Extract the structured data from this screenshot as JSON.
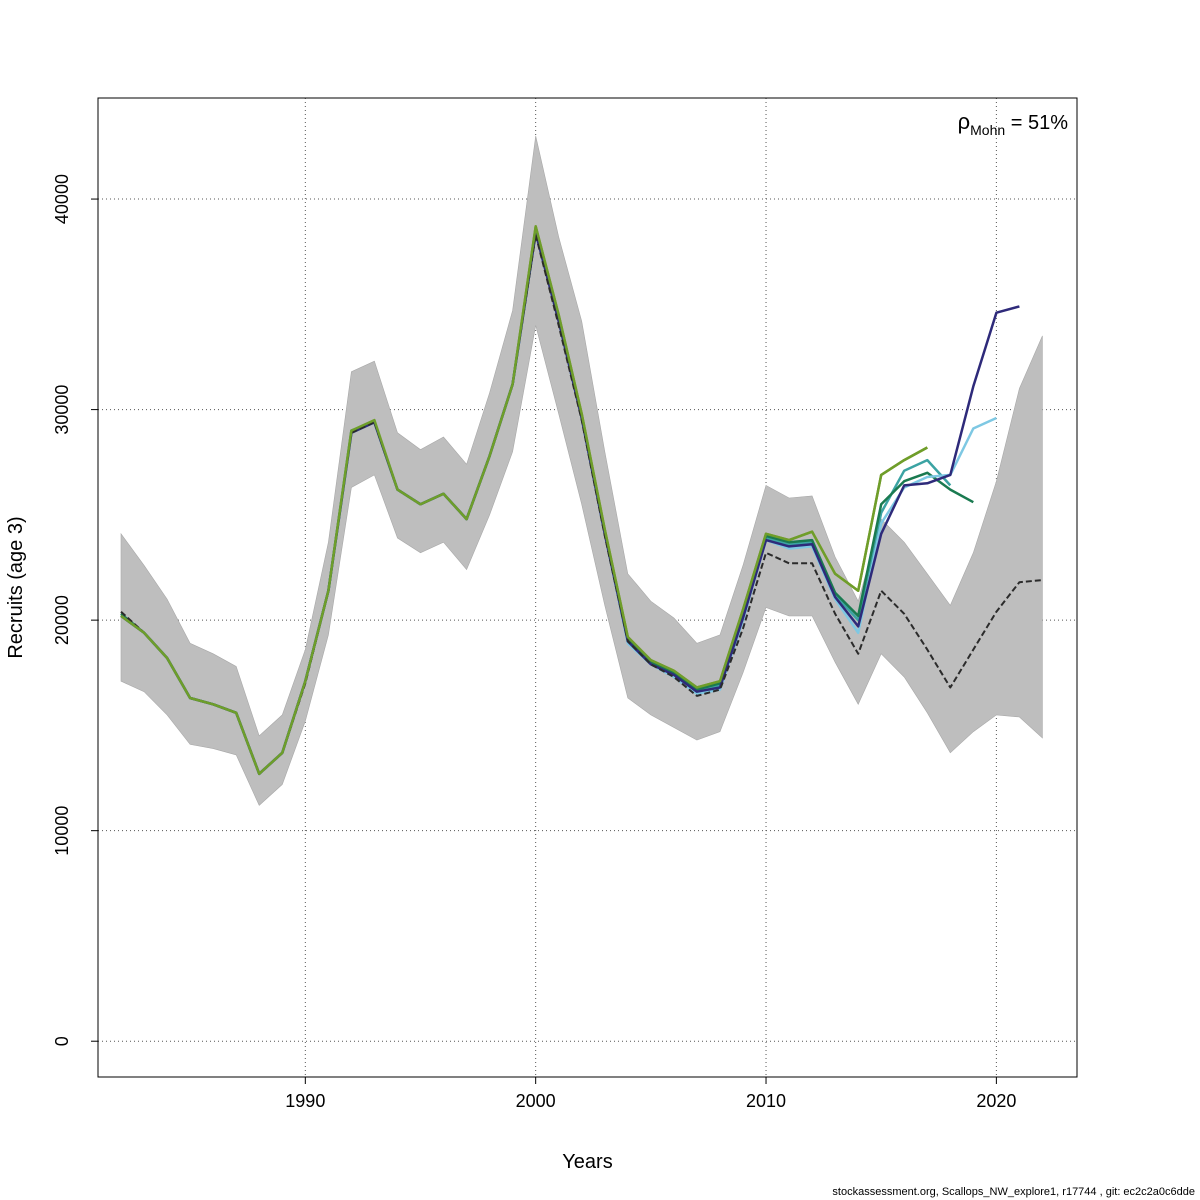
{
  "footer": "stockassessment.org, Scallops_NW_explore1, r17744 , git: ec2c2a0c6dde",
  "annotation": {
    "rho_symbol": "ρ",
    "rho_subscript": "Mohn",
    "rho_value": " = 51%"
  },
  "chart_data": {
    "type": "line",
    "title": "",
    "xlabel": "Years",
    "ylabel": "Recruits (age 3)",
    "xlim": [
      1981,
      2023.5
    ],
    "ylim": [
      -1700,
      44800
    ],
    "xticks": [
      1990,
      2000,
      2010,
      2020
    ],
    "yticks": [
      0,
      10000,
      20000,
      30000,
      40000
    ],
    "grid": true,
    "confidence_band": {
      "x": [
        1982,
        1983,
        1984,
        1985,
        1986,
        1987,
        1988,
        1989,
        1990,
        1991,
        1992,
        1993,
        1994,
        1995,
        1996,
        1997,
        1998,
        1999,
        2000,
        2001,
        2002,
        2003,
        2004,
        2005,
        2006,
        2007,
        2008,
        2009,
        2010,
        2011,
        2012,
        2013,
        2014,
        2015,
        2016,
        2017,
        2018,
        2019,
        2020,
        2021,
        2022
      ],
      "upper": [
        24100,
        22600,
        21000,
        18900,
        18400,
        17800,
        14500,
        15500,
        18600,
        23700,
        31800,
        32300,
        28900,
        28100,
        28700,
        27400,
        30800,
        34700,
        43000,
        38200,
        34200,
        28000,
        22200,
        20900,
        20100,
        18900,
        19300,
        22600,
        26400,
        25800,
        25900,
        23000,
        20900,
        24800,
        23700,
        22200,
        20700,
        23200,
        26600,
        31000,
        33500
      ],
      "lower": [
        17100,
        16600,
        15500,
        14100,
        13900,
        13600,
        11200,
        12200,
        15200,
        19300,
        26300,
        26900,
        23900,
        23200,
        23700,
        22400,
        25000,
        28000,
        34000,
        29800,
        25500,
        20700,
        16300,
        15500,
        14900,
        14300,
        14700,
        17500,
        20600,
        20200,
        20200,
        18000,
        16000,
        18400,
        17300,
        15600,
        13700,
        14700,
        15500,
        15400,
        14400
      ]
    },
    "series": [
      {
        "color": "#8f8f2a",
        "x": [
          1982,
          1983,
          1984,
          1985,
          1986,
          1987,
          1988,
          1989,
          1990,
          1991,
          1992,
          1993,
          1994,
          1995,
          1996,
          1997,
          1998,
          1999,
          2000,
          2001,
          2002,
          2003,
          2004,
          2005,
          2006,
          2007,
          2008,
          2009,
          2010,
          2011,
          2012,
          2013,
          2014,
          2015,
          2016,
          2017
        ],
        "y": [
          20200,
          19400,
          18200,
          16300,
          16000,
          15600,
          12700,
          13700,
          17100,
          21400,
          29000,
          29400,
          26200,
          25500,
          26000,
          24800,
          27800,
          31200,
          38700,
          34500,
          29800,
          24300,
          19200,
          18100,
          17600,
          16800,
          17100,
          20500,
          24100,
          23800,
          24200,
          22200,
          21400,
          26900,
          27600,
          28200
        ]
      },
      {
        "color": "#3ba3a3",
        "x": [
          1982,
          1983,
          1984,
          1985,
          1986,
          1987,
          1988,
          1989,
          1990,
          1991,
          1992,
          1993,
          1994,
          1995,
          1996,
          1997,
          1998,
          1999,
          2000,
          2001,
          2002,
          2003,
          2004,
          2005,
          2006,
          2007,
          2008,
          2009,
          2010,
          2011,
          2012,
          2013,
          2014,
          2015,
          2016,
          2017,
          2018
        ],
        "y": [
          20200,
          19400,
          18200,
          16300,
          16000,
          15600,
          12700,
          13700,
          17100,
          21400,
          29000,
          29400,
          26200,
          25500,
          26000,
          24800,
          27800,
          31200,
          38500,
          34300,
          29600,
          24100,
          19000,
          18000,
          17400,
          16600,
          16900,
          20200,
          23900,
          23600,
          23700,
          21200,
          20000,
          25100,
          27100,
          27600,
          26400
        ]
      },
      {
        "color": "#1a7a50",
        "x": [
          1982,
          1983,
          1984,
          1985,
          1986,
          1987,
          1988,
          1989,
          1990,
          1991,
          1992,
          1993,
          1994,
          1995,
          1996,
          1997,
          1998,
          1999,
          2000,
          2001,
          2002,
          2003,
          2004,
          2005,
          2006,
          2007,
          2008,
          2009,
          2010,
          2011,
          2012,
          2013,
          2014,
          2015,
          2016,
          2017,
          2018,
          2019
        ],
        "y": [
          20300,
          19400,
          18200,
          16300,
          16000,
          15600,
          12700,
          13700,
          17100,
          21400,
          28900,
          29400,
          26200,
          25500,
          26000,
          24800,
          27800,
          31200,
          38400,
          34200,
          29600,
          24100,
          19100,
          18000,
          17500,
          16700,
          17000,
          20300,
          24000,
          23700,
          23800,
          21300,
          20200,
          25500,
          26600,
          27000,
          26200,
          25600
        ]
      },
      {
        "color": "#7ec8e3",
        "x": [
          1982,
          1983,
          1984,
          1985,
          1986,
          1987,
          1988,
          1989,
          1990,
          1991,
          1992,
          1993,
          1994,
          1995,
          1996,
          1997,
          1998,
          1999,
          2000,
          2001,
          2002,
          2003,
          2004,
          2005,
          2006,
          2007,
          2008,
          2009,
          2010,
          2011,
          2012,
          2013,
          2014,
          2015,
          2016,
          2017,
          2018,
          2019,
          2020
        ],
        "y": [
          20200,
          19400,
          18200,
          16300,
          16000,
          15600,
          12700,
          13700,
          17100,
          21400,
          28900,
          29400,
          26200,
          25500,
          26000,
          24800,
          27800,
          31200,
          38400,
          34200,
          29600,
          24100,
          18900,
          17900,
          17300,
          16500,
          16700,
          20000,
          23800,
          23400,
          23500,
          21000,
          19400,
          24600,
          26300,
          26800,
          26900,
          29100,
          29600
        ]
      },
      {
        "color": "#2e2a7a",
        "x": [
          1982,
          1983,
          1984,
          1985,
          1986,
          1987,
          1988,
          1989,
          1990,
          1991,
          1992,
          1993,
          1994,
          1995,
          1996,
          1997,
          1998,
          1999,
          2000,
          2001,
          2002,
          2003,
          2004,
          2005,
          2006,
          2007,
          2008,
          2009,
          2010,
          2011,
          2012,
          2013,
          2014,
          2015,
          2016,
          2017,
          2018,
          2019,
          2020,
          2021
        ],
        "y": [
          20200,
          19400,
          18200,
          16300,
          16000,
          15600,
          12700,
          13700,
          17100,
          21400,
          28900,
          29400,
          26200,
          25500,
          26000,
          24800,
          27800,
          31200,
          38400,
          34200,
          29600,
          24100,
          19000,
          17900,
          17400,
          16600,
          16800,
          20100,
          23800,
          23500,
          23600,
          21100,
          19700,
          24100,
          26400,
          26500,
          26900,
          31100,
          34600,
          34900
        ]
      },
      {
        "color": "#2b2b2b",
        "dashed": true,
        "x": [
          1982,
          1983,
          1984,
          1985,
          1986,
          1987,
          1988,
          1989,
          1990,
          1991,
          1992,
          1993,
          1994,
          1995,
          1996,
          1997,
          1998,
          1999,
          2000,
          2001,
          2002,
          2003,
          2004,
          2005,
          2006,
          2007,
          2008,
          2009,
          2010,
          2011,
          2012,
          2013,
          2014,
          2015,
          2016,
          2017,
          2018,
          2019,
          2020,
          2021,
          2022
        ],
        "y": [
          20400,
          19400,
          18200,
          16300,
          16000,
          15600,
          12700,
          13700,
          17000,
          21400,
          28900,
          29400,
          26200,
          25500,
          26000,
          24800,
          27800,
          31200,
          38300,
          34000,
          29500,
          24000,
          19000,
          17900,
          17300,
          16400,
          16700,
          19600,
          23200,
          22700,
          22700,
          20300,
          18400,
          21400,
          20300,
          18600,
          16800,
          18600,
          20400,
          21800,
          21900
        ]
      },
      {
        "color": "#6e9e2a",
        "x": [
          1982,
          1983,
          1984,
          1985,
          1986,
          1987,
          1988,
          1989,
          1990,
          1991,
          1992,
          1993,
          1994,
          1995,
          1996,
          1997,
          1998,
          1999,
          2000,
          2001,
          2002,
          2003,
          2004,
          2005,
          2006,
          2007,
          2008,
          2009,
          2010,
          2011,
          2012,
          2013,
          2014,
          2015,
          2016,
          2017
        ],
        "y": [
          20200,
          19400,
          18200,
          16300,
          16000,
          15600,
          12700,
          13700,
          17100,
          21400,
          29000,
          29500,
          26200,
          25500,
          26000,
          24800,
          27800,
          31200,
          38700,
          34500,
          29800,
          24300,
          19200,
          18100,
          17600,
          16800,
          17100,
          20500,
          24100,
          23800,
          24200,
          22200,
          21400,
          26900,
          27600,
          28200
        ]
      }
    ]
  }
}
